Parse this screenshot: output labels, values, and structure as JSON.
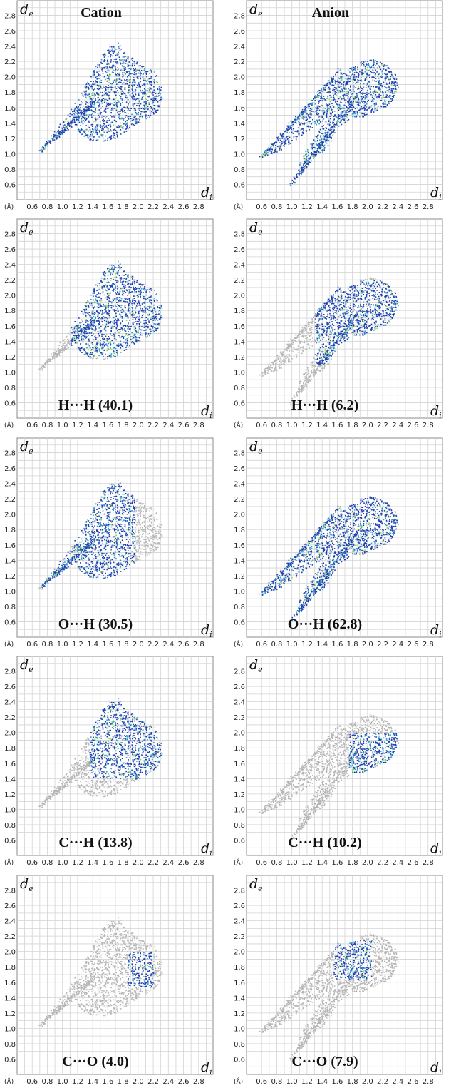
{
  "figure": {
    "columns": [
      "Cation",
      "Anion"
    ],
    "x_axis_symbol": "d",
    "x_axis_subscript": "i",
    "y_axis_symbol": "d",
    "y_axis_subscript": "e",
    "unit_label": "(Å)",
    "x_tick_labels": [
      "0.6",
      "0.8",
      "1.0",
      "1.2",
      "1.4",
      "1.6",
      "1.8",
      "2.0",
      "2.2",
      "2.4",
      "2.6",
      "2.8"
    ],
    "y_tick_labels": [
      "0.6",
      "0.8",
      "1.0",
      "1.2",
      "1.4",
      "1.6",
      "1.8",
      "2.0",
      "2.2",
      "2.4",
      "2.6",
      "2.8"
    ]
  },
  "colors": {
    "highlight": "#1f3fb0",
    "dense": "#2aa1c8",
    "densest": "#8fe04a",
    "background": "#b5b5b5"
  },
  "chart_data": [
    {
      "type": "scatter",
      "panel": "cation-full",
      "title": "Cation",
      "label": "",
      "xlim": [
        0.4,
        3.0
      ],
      "ylim": [
        0.4,
        3.0
      ],
      "grid": true,
      "shape": "cation",
      "highlight_region": {
        "x": [
          0.7,
          2.3
        ],
        "y": [
          1.05,
          2.45
        ]
      }
    },
    {
      "type": "scatter",
      "panel": "anion-full",
      "title": "Anion",
      "label": "",
      "xlim": [
        0.4,
        3.0
      ],
      "ylim": [
        0.4,
        3.0
      ],
      "grid": true,
      "shape": "anion",
      "highlight_region": {
        "x": [
          0.58,
          2.4
        ],
        "y": [
          0.6,
          2.25
        ]
      }
    },
    {
      "type": "scatter",
      "panel": "cation-HH",
      "title": "",
      "label": "H···H (40.1)",
      "contact": "H···H",
      "percent": 40.1,
      "xlim": [
        0.4,
        3.0
      ],
      "ylim": [
        0.4,
        3.0
      ],
      "grid": true,
      "shape": "cation",
      "highlight_region": {
        "x": [
          1.1,
          2.3
        ],
        "y": [
          1.2,
          2.45
        ]
      }
    },
    {
      "type": "scatter",
      "panel": "anion-HH",
      "title": "",
      "label": "H···H (6.2)",
      "contact": "H···H",
      "percent": 6.2,
      "xlim": [
        0.4,
        3.0
      ],
      "ylim": [
        0.4,
        3.0
      ],
      "grid": true,
      "shape": "anion",
      "highlight_region": {
        "x": [
          1.3,
          2.4
        ],
        "y": [
          1.1,
          2.2
        ]
      }
    },
    {
      "type": "scatter",
      "panel": "cation-OH",
      "title": "",
      "label": "O···H (30.5)",
      "contact": "O···H",
      "percent": 30.5,
      "xlim": [
        0.4,
        3.0
      ],
      "ylim": [
        0.4,
        3.0
      ],
      "grid": true,
      "shape": "cation",
      "highlight_region": {
        "x": [
          0.7,
          1.95
        ],
        "y": [
          1.05,
          2.45
        ]
      }
    },
    {
      "type": "scatter",
      "panel": "anion-OH",
      "title": "",
      "label": "O···H (62.8)",
      "contact": "O···H",
      "percent": 62.8,
      "xlim": [
        0.4,
        3.0
      ],
      "ylim": [
        0.4,
        3.0
      ],
      "grid": true,
      "shape": "anion",
      "highlight_region": {
        "x": [
          0.58,
          2.4
        ],
        "y": [
          0.6,
          2.25
        ]
      }
    },
    {
      "type": "scatter",
      "panel": "cation-CH",
      "title": "",
      "label": "C···H (13.8)",
      "contact": "C···H",
      "percent": 13.8,
      "xlim": [
        0.4,
        3.0
      ],
      "ylim": [
        0.4,
        3.0
      ],
      "grid": true,
      "shape": "cation",
      "highlight_region": {
        "x": [
          1.35,
          2.3
        ],
        "y": [
          1.4,
          2.45
        ]
      }
    },
    {
      "type": "scatter",
      "panel": "anion-CH",
      "title": "",
      "label": "C···H (10.2)",
      "contact": "C···H",
      "percent": 10.2,
      "xlim": [
        0.4,
        3.0
      ],
      "ylim": [
        0.4,
        3.0
      ],
      "grid": true,
      "shape": "anion",
      "highlight_region": {
        "x": [
          1.75,
          2.4
        ],
        "y": [
          1.45,
          2.0
        ]
      }
    },
    {
      "type": "scatter",
      "panel": "cation-CO",
      "title": "",
      "label": "C···O (4.0)",
      "contact": "C···O",
      "percent": 4.0,
      "xlim": [
        0.4,
        3.0
      ],
      "ylim": [
        0.4,
        3.0
      ],
      "grid": true,
      "shape": "cation",
      "highlight_region": {
        "x": [
          1.85,
          2.2
        ],
        "y": [
          1.55,
          2.0
        ]
      }
    },
    {
      "type": "scatter",
      "panel": "anion-CO",
      "title": "",
      "label": "C···O (7.9)",
      "contact": "C···O",
      "percent": 7.9,
      "xlim": [
        0.4,
        3.0
      ],
      "ylim": [
        0.4,
        3.0
      ],
      "grid": true,
      "shape": "anion",
      "highlight_region": {
        "x": [
          1.55,
          2.05
        ],
        "y": [
          1.65,
          2.15
        ]
      }
    }
  ]
}
